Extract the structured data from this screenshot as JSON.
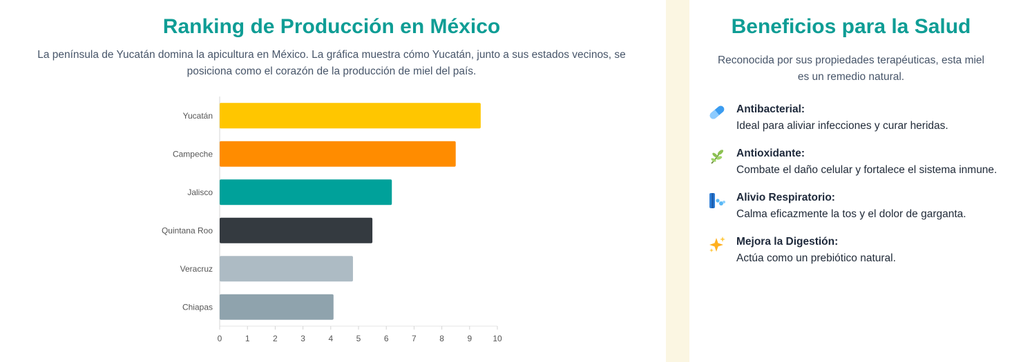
{
  "ranking": {
    "title": "Ranking de Producción en México",
    "description": "La península de Yucatán domina la apicultura en México. La gráfica muestra cómo Yucatán, junto a sus estados vecinos, se posiciona como el corazón de la producción de miel del país."
  },
  "chart_data": {
    "type": "bar",
    "orientation": "horizontal",
    "categories": [
      "Yucatán",
      "Campeche",
      "Jalisco",
      "Quintana Roo",
      "Veracruz",
      "Chiapas"
    ],
    "values": [
      9.4,
      8.5,
      6.2,
      5.5,
      4.8,
      4.1
    ],
    "colors": [
      "#ffc600",
      "#ff8c00",
      "#00a19a",
      "#343a40",
      "#adbbc4",
      "#8fa3ad"
    ],
    "xlim": [
      0,
      10
    ],
    "xticks": [
      "0",
      "1",
      "2",
      "3",
      "4",
      "5",
      "6",
      "7",
      "8",
      "9",
      "10"
    ],
    "grid": false
  },
  "benefits": {
    "title": "Beneficios para la Salud",
    "description": "Reconocida por sus propiedades terapéuticas, esta miel es un remedio natural.",
    "items": [
      {
        "icon": "pill-icon",
        "title": "Antibacterial:",
        "text": "Ideal para aliviar infecciones y curar heridas."
      },
      {
        "icon": "herb-icon",
        "title": "Antioxidante:",
        "text": "Combate el daño celular y fortalece el sistema inmune."
      },
      {
        "icon": "lungs-icon",
        "title": "Alivio Respiratorio:",
        "text": "Calma eficazmente la tos y el dolor de garganta."
      },
      {
        "icon": "sparkles-icon",
        "title": "Mejora la Digestión:",
        "text": "Actúa como un prebiótico natural."
      }
    ]
  }
}
